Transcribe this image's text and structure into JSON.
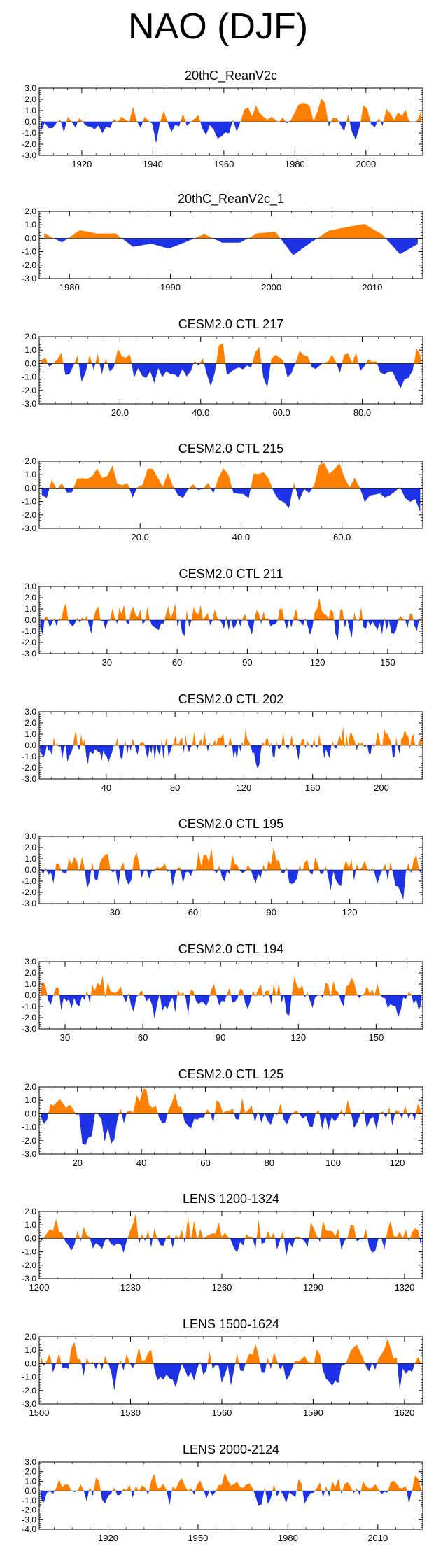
{
  "page_title": "NAO (DJF)",
  "colors": {
    "positive": "#ff8000",
    "negative": "#1f33e6",
    "axis": "#000000"
  },
  "chart_data": [
    {
      "type": "area",
      "title": "20thC_ReanV2c",
      "xlim": [
        1908,
        2016
      ],
      "ylim": [
        -3.0,
        3.0
      ],
      "yticks": [
        "3.0",
        "2.0",
        "1.0",
        "0.0",
        "-1.0",
        "-2.0",
        "-3.0"
      ],
      "xticks": [
        {
          "v": 1920,
          "label": "1920"
        },
        {
          "v": 1940,
          "label": "1940"
        },
        {
          "v": 1960,
          "label": "1960"
        },
        {
          "v": 1980,
          "label": "1980"
        },
        {
          "v": 2000,
          "label": "2000"
        }
      ],
      "n": 100,
      "seed": 11
    },
    {
      "type": "area",
      "title": "20thC_ReanV2c_1",
      "xlim": [
        1977,
        2015
      ],
      "ylim": [
        -3.0,
        2.0
      ],
      "yticks": [
        "2.0",
        "1.0",
        "0.0",
        "-1.0",
        "-2.0",
        "-3.0"
      ],
      "xticks": [
        {
          "v": 1980,
          "label": "1980"
        },
        {
          "v": 1990,
          "label": "1990"
        },
        {
          "v": 2000,
          "label": "2000"
        },
        {
          "v": 2010,
          "label": "2010"
        }
      ],
      "n": 22,
      "seed": 7
    },
    {
      "type": "area",
      "title": "CESM2.0 CTL 217",
      "xlim": [
        0,
        95
      ],
      "ylim": [
        -3.0,
        2.0
      ],
      "yticks": [
        "2.0",
        "1.0",
        "0.0",
        "-1.0",
        "-2.0",
        "-3.0"
      ],
      "xticks": [
        {
          "v": 20,
          "label": "20.0"
        },
        {
          "v": 40,
          "label": "40.0"
        },
        {
          "v": 60,
          "label": "60.0"
        },
        {
          "v": 80,
          "label": "80.0"
        }
      ],
      "n": 95,
      "seed": 217
    },
    {
      "type": "area",
      "title": "CESM2.0 CTL 215",
      "xlim": [
        0,
        76
      ],
      "ylim": [
        -3.0,
        2.0
      ],
      "yticks": [
        "2.0",
        "1.0",
        "0.0",
        "-1.0",
        "-2.0",
        "-3.0"
      ],
      "xticks": [
        {
          "v": 20,
          "label": "20.0"
        },
        {
          "v": 40,
          "label": "40.0"
        },
        {
          "v": 60,
          "label": "60.0"
        }
      ],
      "n": 76,
      "seed": 215
    },
    {
      "type": "area",
      "title": "CESM2.0 CTL 211",
      "xlim": [
        1,
        165
      ],
      "ylim": [
        -3.0,
        3.0
      ],
      "yticks": [
        "3.0",
        "2.0",
        "1.0",
        "0.0",
        "-1.0",
        "-2.0",
        "-3.0"
      ],
      "xticks": [
        {
          "v": 30,
          "label": "30"
        },
        {
          "v": 60,
          "label": "60"
        },
        {
          "v": 90,
          "label": "90"
        },
        {
          "v": 120,
          "label": "120"
        },
        {
          "v": 150,
          "label": "150"
        }
      ],
      "n": 165,
      "seed": 211
    },
    {
      "type": "area",
      "title": "CESM2.0 CTL 202",
      "xlim": [
        1,
        224
      ],
      "ylim": [
        -3.0,
        3.0
      ],
      "yticks": [
        "3.0",
        "2.0",
        "1.0",
        "0.0",
        "-1.0",
        "-2.0",
        "-3.0"
      ],
      "xticks": [
        {
          "v": 40,
          "label": "40"
        },
        {
          "v": 80,
          "label": "80"
        },
        {
          "v": 120,
          "label": "120"
        },
        {
          "v": 160,
          "label": "160"
        },
        {
          "v": 200,
          "label": "200"
        }
      ],
      "n": 224,
      "seed": 202
    },
    {
      "type": "area",
      "title": "CESM2.0 CTL 195",
      "xlim": [
        1,
        148
      ],
      "ylim": [
        -3.0,
        3.0
      ],
      "yticks": [
        "3.0",
        "2.0",
        "1.0",
        "0.0",
        "-1.0",
        "-2.0",
        "-3.0"
      ],
      "xticks": [
        {
          "v": 30,
          "label": "30"
        },
        {
          "v": 60,
          "label": "60"
        },
        {
          "v": 90,
          "label": "90"
        },
        {
          "v": 120,
          "label": "120"
        }
      ],
      "n": 148,
      "seed": 195
    },
    {
      "type": "area",
      "title": "CESM2.0 CTL 194",
      "xlim": [
        20,
        168
      ],
      "ylim": [
        -3.0,
        3.0
      ],
      "yticks": [
        "3.0",
        "2.0",
        "1.0",
        "0.0",
        "-1.0",
        "-2.0",
        "-3.0"
      ],
      "xticks": [
        {
          "v": 30,
          "label": "30"
        },
        {
          "v": 60,
          "label": "60"
        },
        {
          "v": 90,
          "label": "90"
        },
        {
          "v": 120,
          "label": "120"
        },
        {
          "v": 150,
          "label": "150"
        }
      ],
      "n": 148,
      "seed": 194
    },
    {
      "type": "area",
      "title": "CESM2.0 CTL 125",
      "xlim": [
        8,
        128
      ],
      "ylim": [
        -3.0,
        2.0
      ],
      "yticks": [
        "2.0",
        "1.0",
        "0.0",
        "-1.0",
        "-2.0",
        "-3.0"
      ],
      "xticks": [
        {
          "v": 20,
          "label": "20"
        },
        {
          "v": 40,
          "label": "40"
        },
        {
          "v": 60,
          "label": "60"
        },
        {
          "v": 80,
          "label": "80"
        },
        {
          "v": 100,
          "label": "100"
        },
        {
          "v": 120,
          "label": "120"
        }
      ],
      "n": 120,
      "seed": 125
    },
    {
      "type": "area",
      "title": "LENS 1200-1324",
      "xlim": [
        1200,
        1326
      ],
      "ylim": [
        -3.0,
        2.0
      ],
      "yticks": [
        "2.0",
        "1.0",
        "0.0",
        "-1.0",
        "-2.0",
        "-3.0"
      ],
      "xticks": [
        {
          "v": 1200,
          "label": "1200"
        },
        {
          "v": 1230,
          "label": "1230"
        },
        {
          "v": 1260,
          "label": "1260"
        },
        {
          "v": 1290,
          "label": "1290"
        },
        {
          "v": 1320,
          "label": "1320"
        }
      ],
      "n": 125,
      "seed": 1200
    },
    {
      "type": "area",
      "title": "LENS 1500-1624",
      "xlim": [
        1500,
        1626
      ],
      "ylim": [
        -3.0,
        2.0
      ],
      "yticks": [
        "2.0",
        "1.0",
        "0.0",
        "-1.0",
        "-2.0",
        "-3.0"
      ],
      "xticks": [
        {
          "v": 1500,
          "label": "1500"
        },
        {
          "v": 1530,
          "label": "1530"
        },
        {
          "v": 1560,
          "label": "1560"
        },
        {
          "v": 1590,
          "label": "1590"
        },
        {
          "v": 1620,
          "label": "1620"
        }
      ],
      "n": 125,
      "seed": 1500
    },
    {
      "type": "area",
      "title": "LENS 2000-2124",
      "xlim": [
        1897,
        2025
      ],
      "ylim": [
        -4.0,
        3.0
      ],
      "yticks": [
        "3.0",
        "2.0",
        "1.0",
        "0.0",
        "-1.0",
        "-2.0",
        "-3.0",
        "-4.0"
      ],
      "xticks": [
        {
          "v": 1920,
          "label": "1920"
        },
        {
          "v": 1950,
          "label": "1950"
        },
        {
          "v": 1980,
          "label": "1980"
        },
        {
          "v": 2010,
          "label": "2010"
        }
      ],
      "n": 125,
      "seed": 2000
    }
  ]
}
